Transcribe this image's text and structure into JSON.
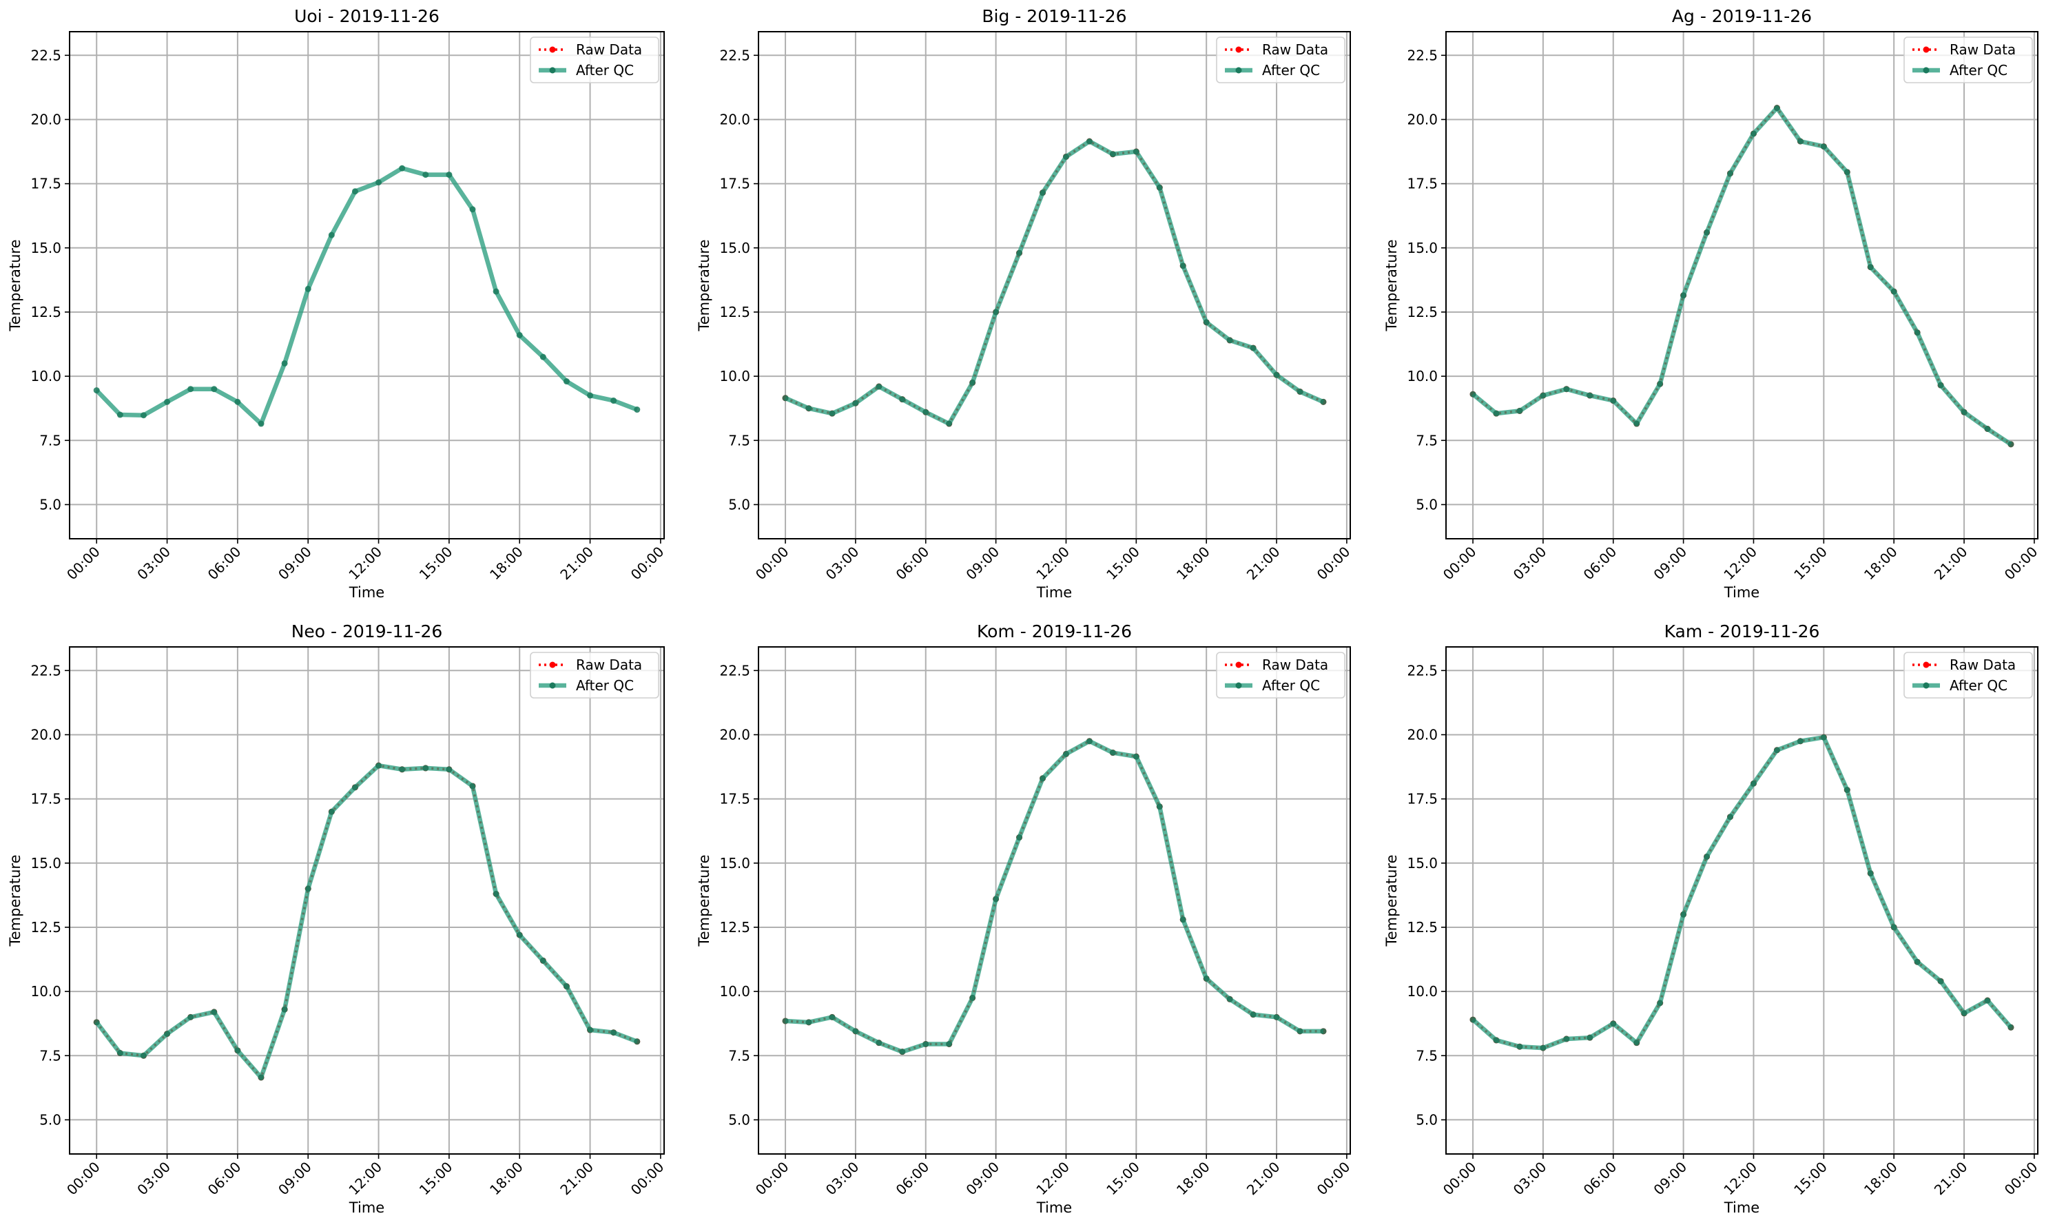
{
  "chart_data": {
    "type": "line",
    "layout": "2x3 grid",
    "legend_placement": "top-right",
    "grid": true,
    "xlabel": "Time",
    "ylabel": "Temperature",
    "ylim": [
      3.67,
      23.42
    ],
    "xlim_hours": [
      -1.15,
      24.15
    ],
    "y_ticks": [
      "5.0",
      "7.5",
      "10.0",
      "12.5",
      "15.0",
      "17.5",
      "20.0",
      "22.5"
    ],
    "x_ticks": [
      "00:00",
      "03:00",
      "06:00",
      "09:00",
      "12:00",
      "15:00",
      "18:00",
      "21:00",
      "00:00"
    ],
    "x_hours": [
      0,
      1,
      2,
      3,
      4,
      5,
      6,
      7,
      8,
      9,
      10,
      11,
      12,
      13,
      14,
      15,
      16,
      17,
      18,
      19,
      20,
      21,
      22,
      23
    ],
    "legend": [
      "Raw Data",
      "After QC"
    ],
    "colors": {
      "raw": "#ff0000",
      "qc": "#2a9d7f",
      "qc_marker": "#1b7a5d",
      "grid": "#b0b0b0"
    },
    "panels": [
      {
        "title": "Uoi - 2019-11-26",
        "raw_visible": false,
        "after_qc": [
          9.45,
          8.5,
          8.48,
          9.0,
          9.5,
          9.5,
          9.0,
          8.15,
          10.5,
          13.4,
          15.5,
          17.2,
          17.55,
          18.1,
          17.85,
          17.85,
          16.5,
          13.3,
          11.6,
          10.75,
          9.8,
          9.25,
          9.05,
          8.7
        ]
      },
      {
        "title": "Big - 2019-11-26",
        "raw_visible": true,
        "after_qc": [
          9.15,
          8.75,
          8.55,
          8.95,
          9.6,
          9.1,
          8.6,
          8.15,
          9.75,
          12.5,
          14.8,
          17.15,
          18.55,
          19.15,
          18.65,
          18.75,
          17.35,
          14.3,
          12.1,
          11.4,
          11.1,
          10.05,
          9.4,
          9.0
        ]
      },
      {
        "title": "Ag - 2019-11-26",
        "raw_visible": true,
        "after_qc": [
          9.3,
          8.55,
          8.65,
          9.25,
          9.5,
          9.25,
          9.05,
          8.15,
          9.7,
          13.15,
          15.6,
          17.9,
          19.45,
          20.45,
          19.15,
          18.95,
          17.95,
          14.25,
          13.3,
          11.7,
          9.65,
          8.6,
          7.95,
          7.35
        ]
      },
      {
        "title": "Neo - 2019-11-26",
        "raw_visible": true,
        "after_qc": [
          8.8,
          7.6,
          7.5,
          8.35,
          9.0,
          9.2,
          7.7,
          6.65,
          9.3,
          14.0,
          17.0,
          17.95,
          18.8,
          18.65,
          18.7,
          18.65,
          18.0,
          13.8,
          12.2,
          11.2,
          10.2,
          8.5,
          8.4,
          8.05
        ]
      },
      {
        "title": "Kom - 2019-11-26",
        "raw_visible": true,
        "after_qc": [
          8.85,
          8.8,
          9.0,
          8.45,
          8.0,
          7.65,
          7.95,
          7.95,
          9.75,
          13.6,
          16.0,
          18.3,
          19.25,
          19.75,
          19.3,
          19.15,
          17.2,
          12.8,
          10.5,
          9.7,
          9.1,
          9.0,
          8.45,
          8.45
        ]
      },
      {
        "title": "Kam - 2019-11-26",
        "raw_visible": true,
        "after_qc": [
          8.9,
          8.1,
          7.85,
          7.8,
          8.15,
          8.2,
          8.75,
          8.0,
          9.55,
          13.0,
          15.25,
          16.8,
          18.1,
          19.4,
          19.75,
          19.9,
          17.85,
          14.6,
          12.5,
          11.15,
          10.4,
          9.15,
          9.65,
          8.6
        ]
      }
    ]
  }
}
